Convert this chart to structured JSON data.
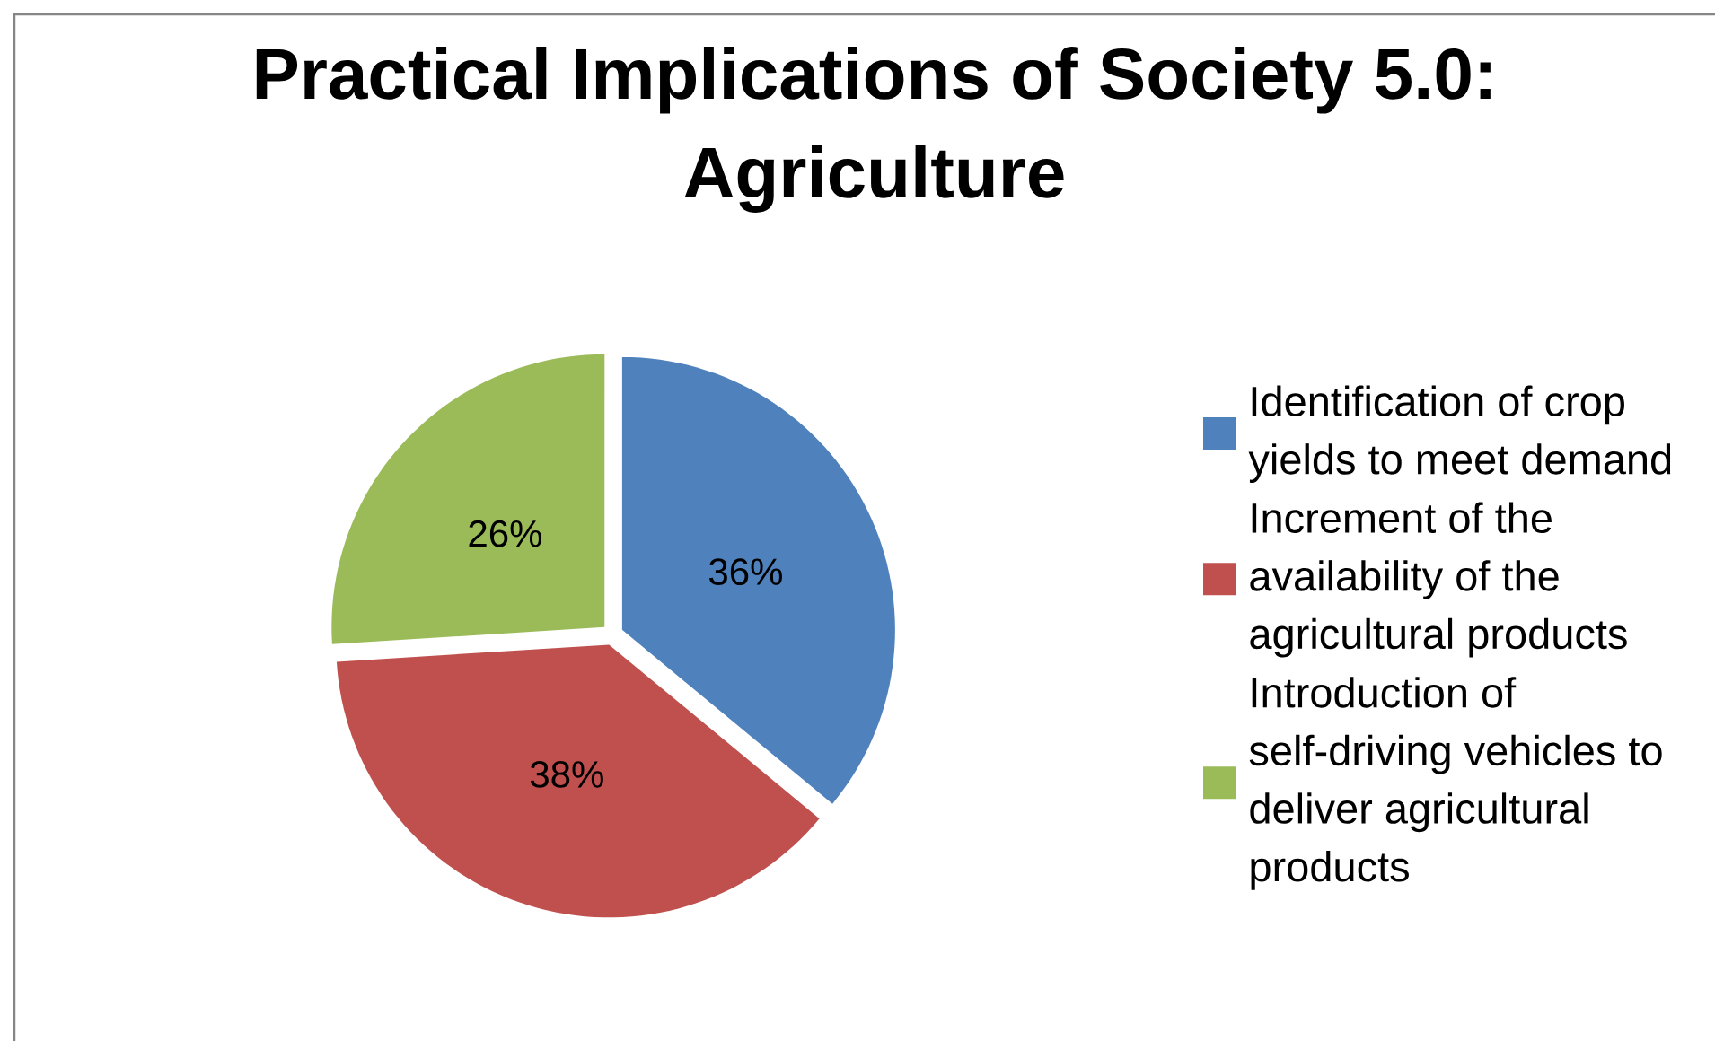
{
  "chart_data": {
    "type": "pie",
    "title": "Practical Implications of Society 5.0: Agriculture",
    "categories": [
      "Identification of crop yields to meet demand",
      "Increment of the availability of the agricultural products",
      "Introduction of self-driving vehicles to deliver agricultural products"
    ],
    "values": [
      36,
      38,
      26
    ],
    "colors": [
      "#4f81bd",
      "#c0504d",
      "#9bbb59"
    ],
    "value_labels": [
      "36%",
      "38%",
      "26%"
    ],
    "legend": "right"
  }
}
